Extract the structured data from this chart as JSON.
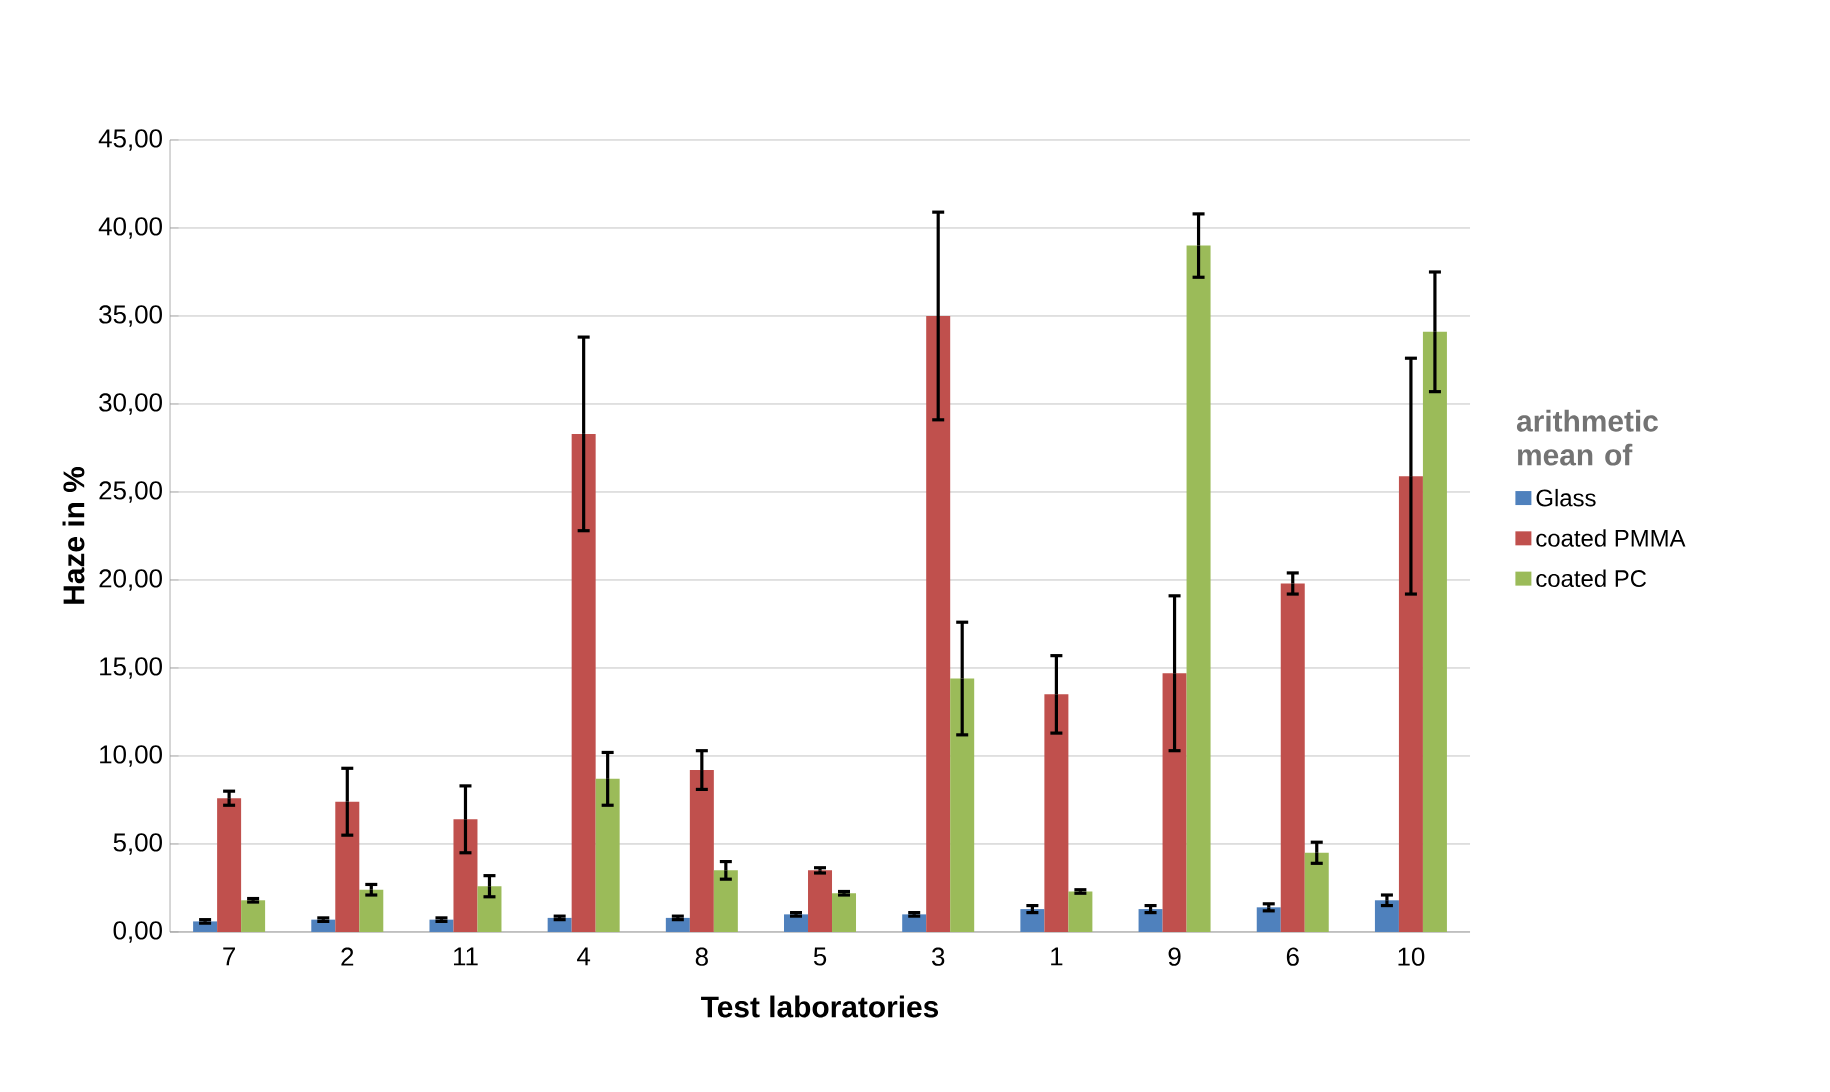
{
  "chart_data": {
    "type": "bar",
    "xlabel": "Test laboratories",
    "ylabel": "Haze in %",
    "legend_title": "arithmetic mean of",
    "categories": [
      "7",
      "2",
      "11",
      "4",
      "8",
      "5",
      "3",
      "1",
      "9",
      "6",
      "10"
    ],
    "series": [
      {
        "name": "Glass",
        "color": "#4f81bd",
        "values": [
          0.6,
          0.7,
          0.7,
          0.8,
          0.8,
          1.0,
          1.0,
          1.3,
          1.3,
          1.4,
          1.8
        ],
        "errors": [
          0.1,
          0.1,
          0.1,
          0.1,
          0.1,
          0.1,
          0.1,
          0.2,
          0.2,
          0.2,
          0.3
        ]
      },
      {
        "name": "coated PMMA",
        "color": "#c0504d",
        "values": [
          7.6,
          7.4,
          6.4,
          28.3,
          9.2,
          3.5,
          35.0,
          13.5,
          14.7,
          19.8,
          25.9
        ],
        "errors": [
          0.4,
          1.9,
          1.9,
          5.5,
          1.1,
          0.15,
          5.9,
          2.2,
          4.4,
          0.6,
          6.7
        ]
      },
      {
        "name": "coated PC",
        "color": "#9bbb59",
        "values": [
          1.8,
          2.4,
          2.6,
          8.7,
          3.5,
          2.2,
          14.4,
          2.3,
          39.0,
          4.5,
          34.1
        ],
        "errors": [
          0.1,
          0.3,
          0.6,
          1.5,
          0.5,
          0.1,
          3.2,
          0.1,
          1.8,
          0.6,
          3.4
        ]
      }
    ],
    "ylim": [
      0,
      45
    ],
    "yticks": [
      {
        "value": 0,
        "label": "0,00"
      },
      {
        "value": 5,
        "label": "5,00"
      },
      {
        "value": 10,
        "label": "10,00"
      },
      {
        "value": 15,
        "label": "15,00"
      },
      {
        "value": 20,
        "label": "20,00"
      },
      {
        "value": 25,
        "label": "25,00"
      },
      {
        "value": 30,
        "label": "30,00"
      },
      {
        "value": 35,
        "label": "35,00"
      },
      {
        "value": 40,
        "label": "40,00"
      },
      {
        "value": 45,
        "label": "45,00"
      }
    ],
    "grid": "y",
    "legend": "right"
  }
}
